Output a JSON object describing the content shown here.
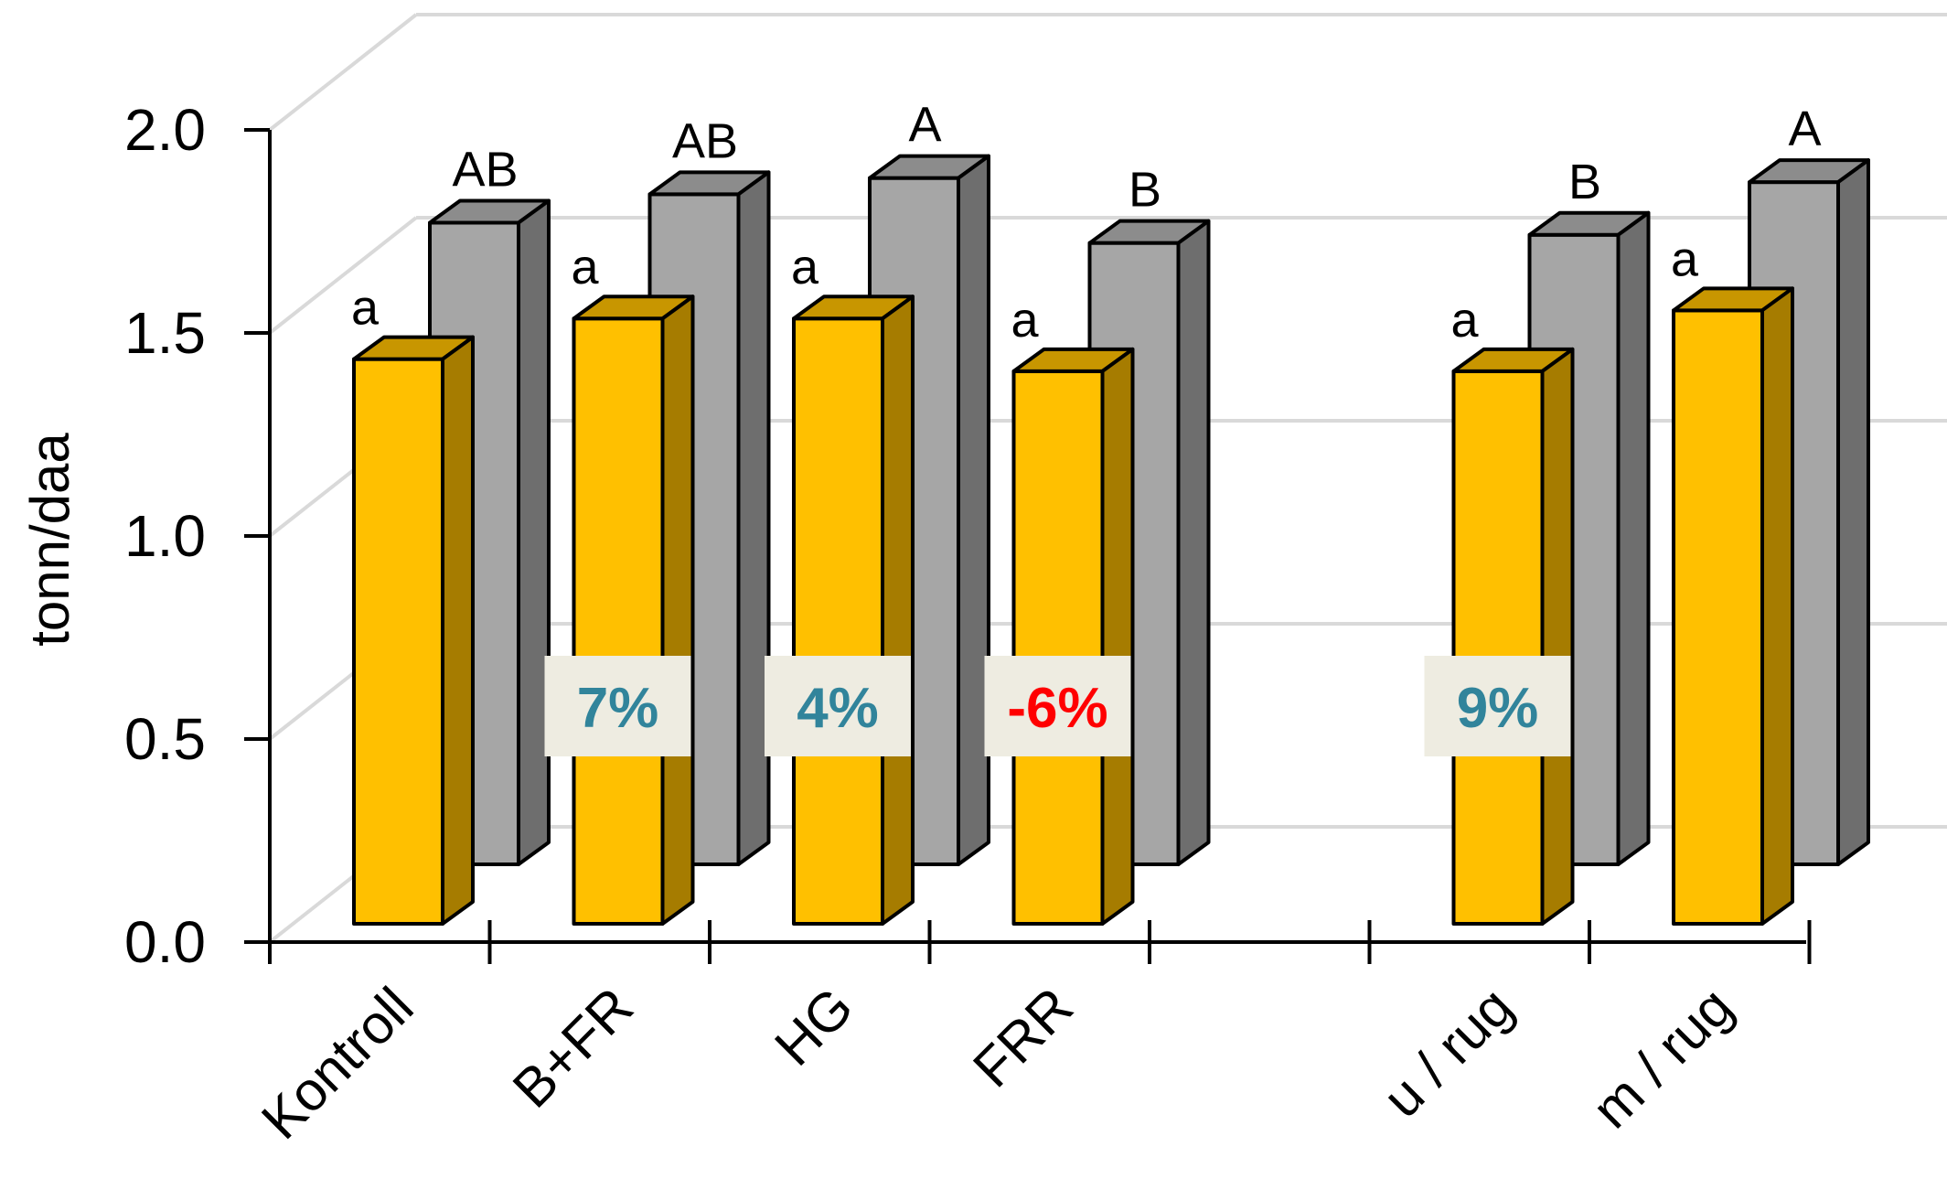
{
  "chart_data": {
    "type": "bar",
    "categories": [
      "Kontroll",
      "B+FR",
      "HG",
      "FRR",
      "",
      "u / rug",
      "m / rug"
    ],
    "ylabel": "tonn/daa",
    "ylim": [
      0,
      2.0
    ],
    "yticks": [
      "0.0",
      "0.5",
      "1.0",
      "1.5",
      "2.0"
    ],
    "grid": true,
    "style": "3d-clustered",
    "series": [
      {
        "values": [
          1.35,
          1.45,
          1.45,
          1.32,
          null,
          1.32,
          1.47
        ],
        "letters": [
          "a",
          "a",
          "a",
          "a",
          "",
          "a",
          "a"
        ],
        "color": "#FFC000",
        "side_color": "#A67C00",
        "top_color": "#C89600"
      },
      {
        "values": [
          1.58,
          1.65,
          1.69,
          1.53,
          null,
          1.55,
          1.68
        ],
        "letters": [
          "AB",
          "AB",
          "A",
          "B",
          "",
          "B",
          "A"
        ],
        "color": "#A6A6A6",
        "side_color": "#6E6E6E",
        "top_color": "#8C8C8C"
      }
    ],
    "annotations": [
      {
        "category": "B+FR",
        "text": "7%",
        "color": "#31849B"
      },
      {
        "category": "HG",
        "text": "4%",
        "color": "#31849B"
      },
      {
        "category": "FRR",
        "text": "-6%",
        "color": "#FF0000"
      },
      {
        "category": "u / rug",
        "text": "9%",
        "color": "#31849B"
      }
    ],
    "annotation_box_color": "#EEECE1",
    "gridline_color": "#D9D9D9"
  }
}
